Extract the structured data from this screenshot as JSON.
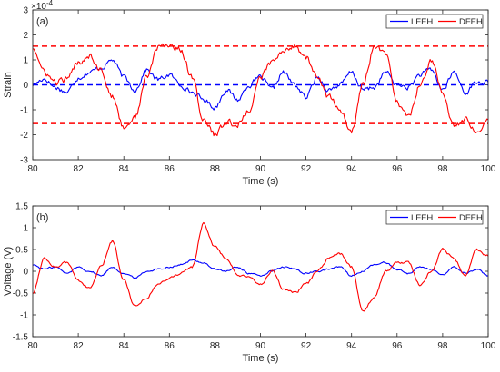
{
  "chart_data": [
    {
      "type": "line",
      "panel_label": "(a)",
      "xlabel": "Time (s)",
      "ylabel": "Strain",
      "exponent_label": "×10",
      "exponent_power": "-4",
      "xlim": [
        80,
        100
      ],
      "ylim": [
        -3,
        3
      ],
      "xticks": [
        80,
        82,
        84,
        86,
        88,
        90,
        92,
        94,
        96,
        98,
        100
      ],
      "yticks": [
        -3,
        -2,
        -1,
        0,
        1,
        2,
        3
      ],
      "legend_position": "top-right",
      "series": [
        {
          "name": "LFEH",
          "color": "#0000ff",
          "x": [
            80,
            80.5,
            81,
            81.5,
            82,
            82.5,
            83,
            83.5,
            84,
            84.5,
            85,
            85.5,
            86,
            86.5,
            87,
            87.5,
            88,
            88.5,
            89,
            89.5,
            90,
            90.5,
            91,
            91.5,
            92,
            92.5,
            93,
            93.5,
            94,
            94.5,
            95,
            95.5,
            96,
            96.5,
            97,
            97.5,
            98,
            98.5,
            99,
            99.5,
            100
          ],
          "values": [
            0.0,
            0.25,
            -0.1,
            -0.3,
            0.3,
            0.5,
            0.7,
            1.0,
            0.3,
            -0.2,
            0.6,
            0.2,
            0.4,
            0.0,
            -0.3,
            -0.6,
            -0.9,
            -0.2,
            -0.6,
            0.0,
            0.3,
            -0.2,
            0.5,
            0.0,
            -0.5,
            0.3,
            -0.2,
            0.0,
            0.5,
            -0.2,
            -0.1,
            0.5,
            0.0,
            -0.1,
            0.4,
            0.6,
            -0.2,
            0.5,
            -0.3,
            0.1,
            0.1
          ]
        },
        {
          "name": "DFEH",
          "color": "#ff0000",
          "x": [
            80,
            80.5,
            81,
            81.5,
            82,
            82.5,
            83,
            83.5,
            84,
            84.5,
            85,
            85.5,
            86,
            86.5,
            87,
            87.5,
            88,
            88.5,
            89,
            89.5,
            90,
            90.5,
            91,
            91.5,
            92,
            92.5,
            93,
            93.5,
            94,
            94.5,
            95,
            95.5,
            96,
            96.5,
            97,
            97.5,
            98,
            98.5,
            99,
            99.5,
            100
          ],
          "values": [
            1.5,
            0.5,
            0.1,
            0.2,
            0.9,
            1.2,
            0.6,
            -0.5,
            -1.7,
            -1.3,
            0.3,
            1.5,
            1.6,
            1.4,
            0.3,
            -1.4,
            -2.0,
            -1.5,
            -1.6,
            -1.0,
            0.3,
            0.9,
            1.3,
            1.6,
            1.1,
            0.3,
            -0.5,
            -1.0,
            -1.9,
            0.0,
            1.5,
            1.2,
            -0.7,
            -1.3,
            0.0,
            1.0,
            -0.4,
            -1.6,
            -1.4,
            -1.8,
            -1.4
          ]
        }
      ],
      "reference_lines": [
        {
          "y": 1.55,
          "color": "#ff0000",
          "style": "dashed"
        },
        {
          "y": -1.55,
          "color": "#ff0000",
          "style": "dashed"
        },
        {
          "y": 0,
          "color": "#0000ff",
          "style": "dashed"
        }
      ]
    },
    {
      "type": "line",
      "panel_label": "(b)",
      "xlabel": "Time (s)",
      "ylabel": "Voltage (V)",
      "xlim": [
        80,
        100
      ],
      "ylim": [
        -1.5,
        1.5
      ],
      "xticks": [
        80,
        82,
        84,
        86,
        88,
        90,
        92,
        94,
        96,
        98,
        100
      ],
      "yticks": [
        -1.5,
        -1,
        -0.5,
        0,
        0.5,
        1,
        1.5
      ],
      "legend_position": "top-right",
      "series": [
        {
          "name": "LFEH",
          "color": "#0000ff",
          "x": [
            80,
            80.5,
            81,
            81.5,
            82,
            82.5,
            83,
            83.5,
            84,
            84.5,
            85,
            85.5,
            86,
            86.5,
            87,
            87.5,
            88,
            88.5,
            89,
            89.5,
            90,
            90.5,
            91,
            91.5,
            92,
            92.5,
            93,
            93.5,
            94,
            94.5,
            95,
            95.5,
            96,
            96.5,
            97,
            97.5,
            98,
            98.5,
            99,
            99.5,
            100
          ],
          "values": [
            0.15,
            0.05,
            0.1,
            -0.05,
            0.1,
            0.0,
            -0.1,
            0.1,
            -0.05,
            -0.15,
            0.0,
            0.05,
            0.1,
            0.15,
            0.25,
            0.2,
            0.05,
            0.0,
            0.1,
            -0.05,
            -0.1,
            0.0,
            0.1,
            0.05,
            -0.05,
            0.0,
            0.05,
            0.1,
            -0.1,
            0.0,
            0.15,
            0.2,
            0.05,
            -0.05,
            0.1,
            0.05,
            -0.1,
            0.1,
            -0.05,
            0.05,
            -0.1
          ]
        },
        {
          "name": "DFEH",
          "color": "#ff0000",
          "x": [
            80,
            80.5,
            81,
            81.5,
            82,
            82.5,
            83,
            83.5,
            84,
            84.5,
            85,
            85.5,
            86,
            86.5,
            87,
            87.5,
            88,
            88.5,
            89,
            89.5,
            90,
            90.5,
            91,
            91.5,
            92,
            92.5,
            93,
            93.5,
            94,
            94.5,
            95,
            95.5,
            96,
            96.5,
            97,
            97.5,
            98,
            98.5,
            99,
            99.5,
            100
          ],
          "values": [
            -0.5,
            0.3,
            0.1,
            0.2,
            -0.2,
            -0.4,
            0.1,
            0.7,
            -0.2,
            -0.8,
            -0.6,
            -0.3,
            -0.15,
            -0.05,
            0.1,
            1.1,
            0.55,
            0.3,
            -0.1,
            -0.15,
            -0.3,
            0.0,
            -0.4,
            -0.5,
            -0.3,
            0.0,
            0.3,
            0.4,
            0.1,
            -0.9,
            -0.6,
            0.0,
            0.2,
            0.2,
            -0.3,
            0.0,
            0.5,
            0.3,
            -0.1,
            0.5,
            0.35
          ]
        }
      ],
      "reference_lines": []
    }
  ]
}
